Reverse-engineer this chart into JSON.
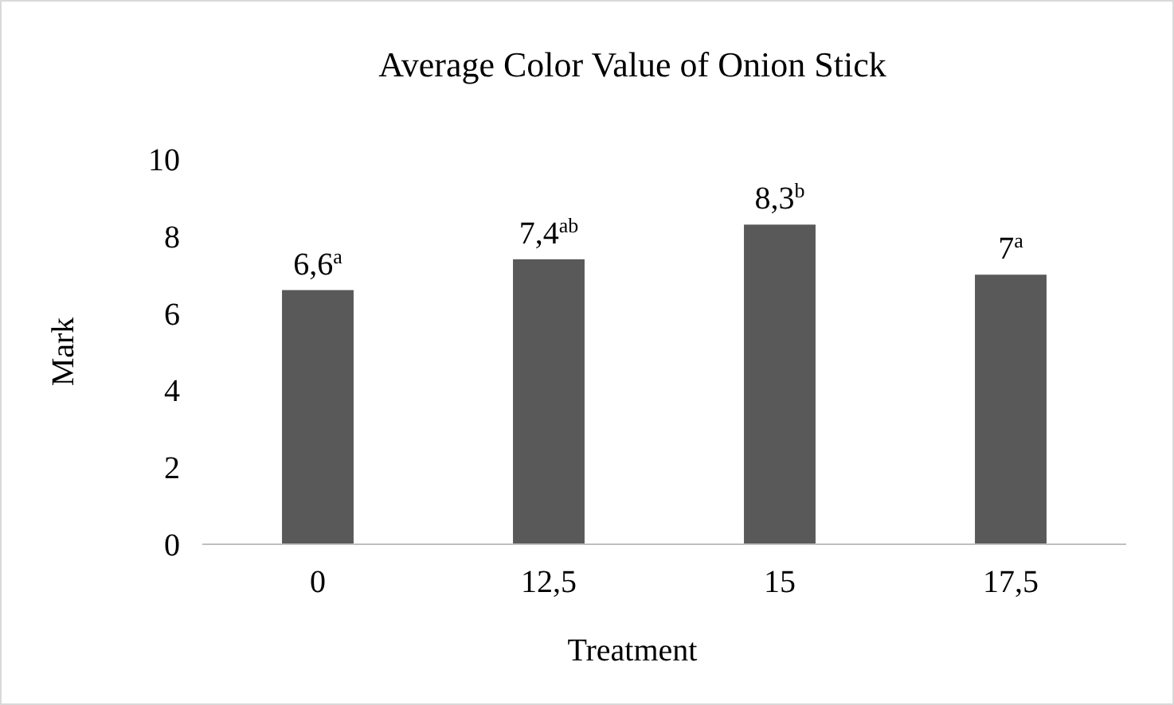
{
  "chart_data": {
    "type": "bar",
    "title": "Average Color Value of Onion Stick",
    "xlabel": "Treatment",
    "ylabel": "Mark",
    "categories": [
      "0",
      "12,5",
      "15",
      "17,5"
    ],
    "values": [
      6.6,
      7.4,
      8.3,
      7
    ],
    "value_labels": [
      "6,6$^{a}$",
      "7,4$^{ab}$",
      "8,3$^{b}$",
      "7$^{a}$"
    ],
    "color": "#595959",
    "ylim": [
      0,
      10
    ],
    "yticks": [
      0,
      2,
      4,
      6,
      8,
      10
    ],
    "grid": false
  }
}
